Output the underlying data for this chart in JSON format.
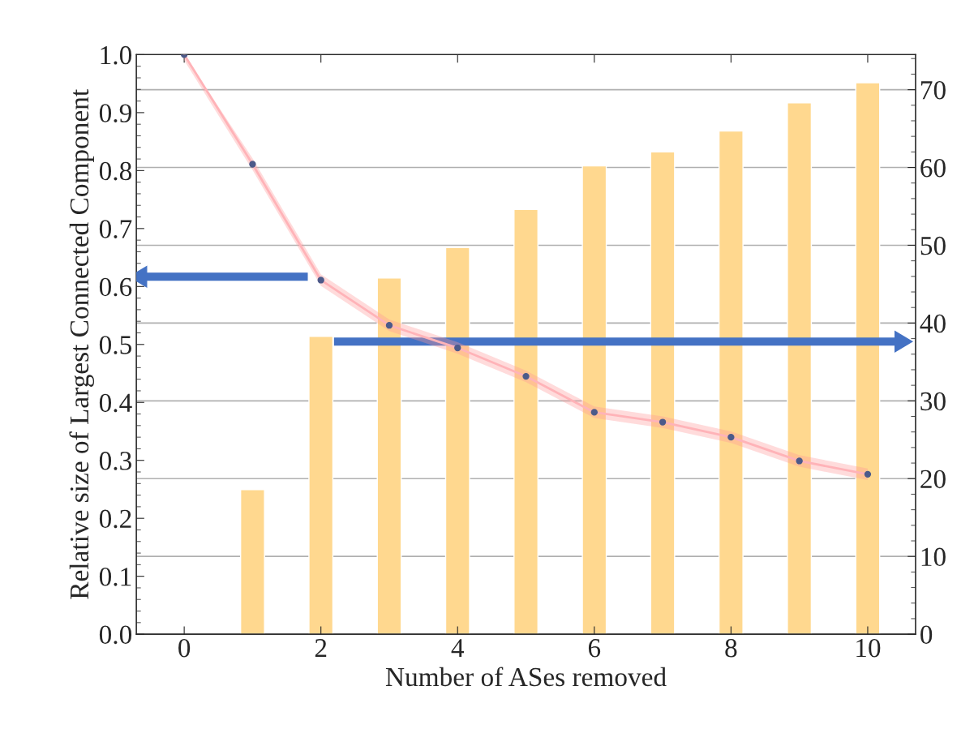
{
  "chart_data": {
    "type": "line",
    "xlabel": "Number of ASes removed",
    "ylabel": "Relative size of Largest Connected Component",
    "x": [
      0,
      1,
      2,
      3,
      4,
      5,
      6,
      7,
      8,
      9,
      10
    ],
    "series": [
      {
        "type": "bar",
        "axis": "y2",
        "color": "#ffd88f",
        "values": [
          null,
          18.6,
          38.3,
          45.8,
          49.7,
          54.6,
          60.2,
          62.0,
          64.7,
          68.3,
          70.9
        ]
      },
      {
        "color": "#4c5a8a",
        "values": [
          1.0,
          0.811,
          0.611,
          0.533,
          0.494,
          0.445,
          0.383,
          0.366,
          0.34,
          0.299,
          0.276
        ],
        "lower": [
          0.99,
          0.801,
          0.601,
          0.523,
          0.484,
          0.435,
          0.373,
          0.356,
          0.33,
          0.289,
          0.266
        ],
        "upper": [
          1.0,
          0.821,
          0.621,
          0.543,
          0.504,
          0.455,
          0.393,
          0.376,
          0.35,
          0.309,
          0.286
        ]
      }
    ],
    "marker": "circle",
    "grid": "y",
    "xlim": [
      -0.7,
      10.7
    ],
    "xticks": [
      0,
      2,
      4,
      6,
      8,
      10
    ],
    "ylim": [
      0,
      1
    ],
    "yticks": [
      {
        "value": 0,
        "label": "0.0"
      },
      0.1,
      0.2,
      0.3,
      0.4,
      0.5,
      0.6,
      0.7,
      0.8,
      0.9,
      {
        "value": 1,
        "label": "1.0"
      }
    ],
    "y2lim": [
      0,
      74.5
    ],
    "y2ticks": [
      0,
      10,
      20,
      30,
      40,
      50,
      60,
      70
    ]
  }
}
